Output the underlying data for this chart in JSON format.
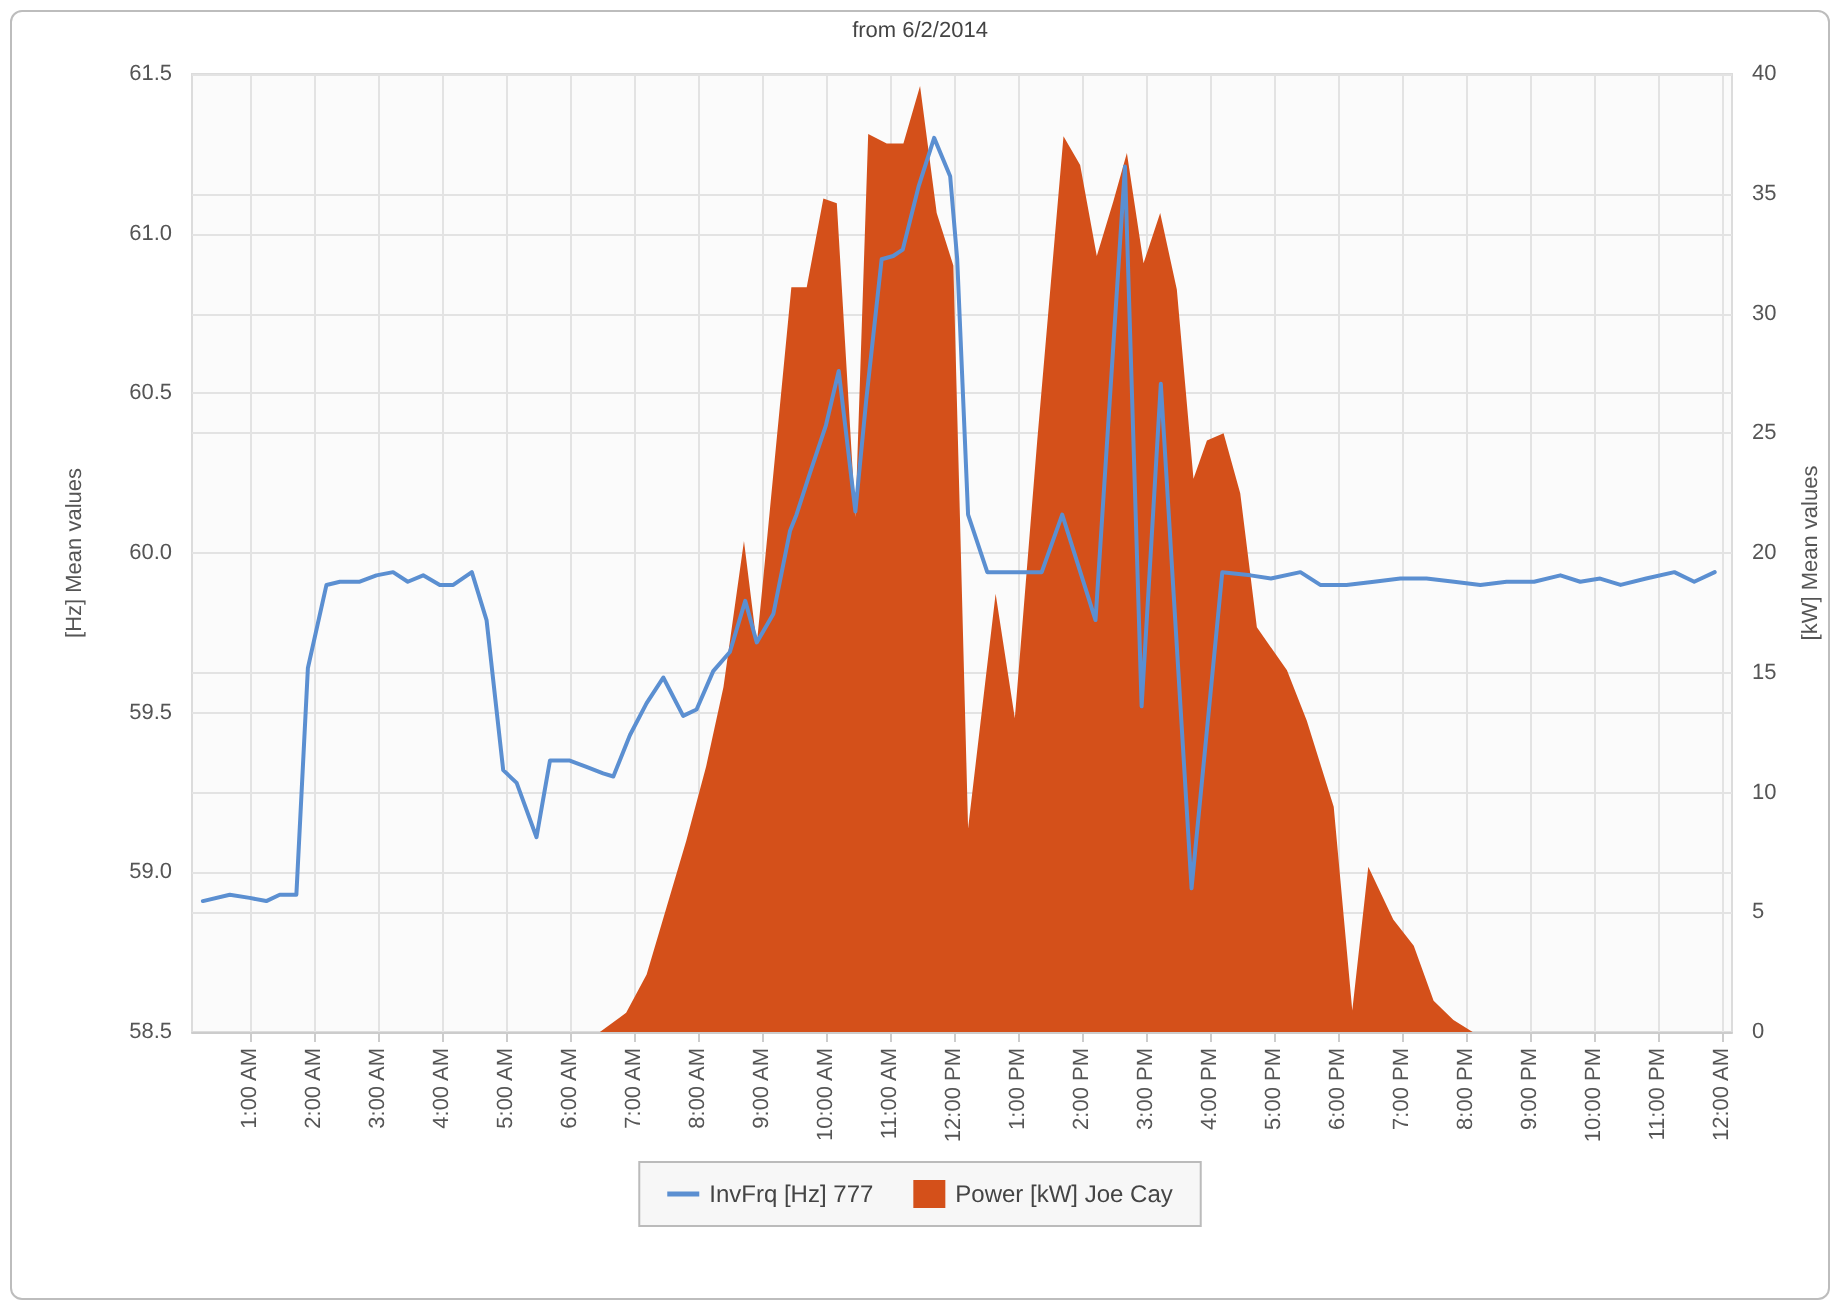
{
  "chart_data": {
    "type": "line",
    "title": "from 6/2/2014",
    "ylabel": "[Hz] Mean values",
    "y2label": "[kW] Mean values",
    "xlim": [
      0.1,
      24.15
    ],
    "xticks": [
      {
        "value": 1,
        "label": "1:00 AM"
      },
      {
        "value": 2,
        "label": "2:00 AM"
      },
      {
        "value": 3,
        "label": "3:00 AM"
      },
      {
        "value": 4,
        "label": "4:00 AM"
      },
      {
        "value": 5,
        "label": "5:00 AM"
      },
      {
        "value": 6,
        "label": "6:00 AM"
      },
      {
        "value": 7,
        "label": "7:00 AM"
      },
      {
        "value": 8,
        "label": "8:00 AM"
      },
      {
        "value": 9,
        "label": "9:00 AM"
      },
      {
        "value": 10,
        "label": "10:00 AM"
      },
      {
        "value": 11,
        "label": "11:00 AM"
      },
      {
        "value": 12,
        "label": "12:00 PM"
      },
      {
        "value": 13,
        "label": "1:00 PM"
      },
      {
        "value": 14,
        "label": "2:00 PM"
      },
      {
        "value": 15,
        "label": "3:00 PM"
      },
      {
        "value": 16,
        "label": "4:00 PM"
      },
      {
        "value": 17,
        "label": "5:00 PM"
      },
      {
        "value": 18,
        "label": "6:00 PM"
      },
      {
        "value": 19,
        "label": "7:00 PM"
      },
      {
        "value": 20,
        "label": "8:00 PM"
      },
      {
        "value": 21,
        "label": "9:00 PM"
      },
      {
        "value": 22,
        "label": "10:00 PM"
      },
      {
        "value": 23,
        "label": "11:00 PM"
      },
      {
        "value": 24,
        "label": "12:00 AM"
      }
    ],
    "ylim": [
      58.5,
      61.5
    ],
    "yticks": [
      58.5,
      {
        "value": 59,
        "label": "59.0"
      },
      59.5,
      {
        "value": 60,
        "label": "60.0"
      },
      60.5,
      {
        "value": 61,
        "label": "61.0"
      },
      61.5
    ],
    "y2lim": [
      0,
      40
    ],
    "y2ticks": [
      0,
      5,
      10,
      15,
      20,
      25,
      30,
      35,
      40
    ],
    "grid": true,
    "legend": "bottom",
    "marker": "none",
    "series": [
      {
        "name": "InvFrq [Hz] 777",
        "axis": "y",
        "color": "#5b8fd1",
        "x": [
          0.27,
          0.69,
          1.0,
          1.26,
          1.47,
          1.73,
          1.91,
          2.2,
          2.41,
          2.72,
          2.98,
          3.24,
          3.47,
          3.71,
          3.97,
          4.18,
          4.47,
          4.7,
          4.96,
          5.17,
          5.48,
          5.69,
          6.0,
          6.26,
          6.52,
          6.68,
          6.94,
          7.2,
          7.46,
          7.77,
          7.98,
          8.24,
          8.5,
          8.74,
          8.92,
          9.18,
          9.44,
          9.54,
          9.75,
          10.0,
          10.2,
          10.46,
          10.63,
          10.87,
          11.05,
          11.2,
          11.45,
          11.69,
          11.94,
          12.05,
          12.22,
          12.52,
          12.83,
          13.37,
          13.69,
          14.21,
          14.67,
          14.93,
          15.23,
          15.71,
          16.19,
          16.63,
          16.95,
          17.41,
          17.72,
          18.13,
          18.56,
          18.97,
          19.38,
          19.81,
          20.22,
          20.63,
          21.06,
          21.47,
          21.78,
          22.09,
          22.41,
          22.81,
          23.25,
          23.56,
          23.88
        ],
        "values": [
          58.91,
          58.93,
          58.92,
          58.91,
          58.93,
          58.93,
          59.64,
          59.9,
          59.91,
          59.91,
          59.93,
          59.94,
          59.91,
          59.93,
          59.9,
          59.9,
          59.94,
          59.79,
          59.32,
          59.28,
          59.11,
          59.35,
          59.35,
          59.33,
          59.31,
          59.3,
          59.43,
          59.53,
          59.61,
          59.49,
          59.51,
          59.63,
          59.69,
          59.85,
          59.72,
          59.81,
          60.07,
          60.12,
          60.25,
          60.4,
          60.57,
          60.13,
          60.48,
          60.92,
          60.93,
          60.95,
          61.15,
          61.3,
          61.18,
          60.92,
          60.12,
          59.94,
          59.94,
          59.94,
          60.12,
          59.79,
          61.21,
          59.52,
          60.53,
          58.95,
          59.94,
          59.93,
          59.92,
          59.94,
          59.9,
          59.9,
          59.91,
          59.92,
          59.92,
          59.91,
          59.9,
          59.91,
          59.91,
          59.93,
          59.91,
          59.92,
          59.9,
          59.92,
          59.94,
          59.91,
          59.94
        ]
      },
      {
        "name": "Power [kW] Joe Cay",
        "type": "area",
        "axis": "y2",
        "color": "#d4501a",
        "x": [
          6.47,
          6.88,
          7.2,
          7.51,
          7.82,
          8.13,
          8.4,
          8.72,
          8.92,
          9.02,
          9.46,
          9.7,
          9.96,
          10.17,
          10.46,
          10.66,
          10.95,
          11.21,
          11.47,
          11.73,
          11.99,
          12.22,
          12.65,
          12.95,
          13.3,
          13.71,
          13.97,
          14.23,
          14.49,
          14.7,
          14.96,
          15.22,
          15.48,
          15.74,
          15.95,
          16.21,
          16.47,
          16.73,
          17.2,
          17.51,
          17.93,
          18.22,
          18.47,
          18.86,
          19.18,
          19.49,
          19.8,
          20.1
        ],
        "values": [
          0,
          0.8,
          2.4,
          5.2,
          8.0,
          11.1,
          14.4,
          20.5,
          16.2,
          18.9,
          31.1,
          31.1,
          34.8,
          34.6,
          21.5,
          37.5,
          37.1,
          37.1,
          39.5,
          34.2,
          32.0,
          8.5,
          18.3,
          13.1,
          24.7,
          37.4,
          36.2,
          32.4,
          34.7,
          36.7,
          32.1,
          34.2,
          31.0,
          23.1,
          24.7,
          25.0,
          22.5,
          16.9,
          15.1,
          13.0,
          9.4,
          0.9,
          6.9,
          4.7,
          3.6,
          1.3,
          0.5,
          0
        ]
      }
    ]
  }
}
